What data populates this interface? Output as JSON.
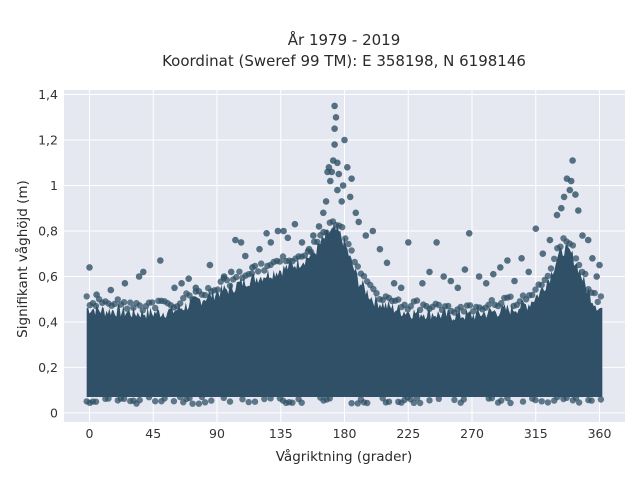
{
  "chart_data": {
    "type": "scatter",
    "title_lines": [
      "År 1979 - 2019",
      "Koordinat (Sweref 99 TM): E 358198, N 6198146"
    ],
    "xlabel": "Vågriktning (grader)",
    "ylabel": "Signifikant våghöjd (m)",
    "xlim": [
      -18,
      378
    ],
    "ylim": [
      -0.04,
      1.42
    ],
    "x_ticks": [
      0,
      45,
      90,
      135,
      180,
      225,
      270,
      315,
      360
    ],
    "x_tick_labels": [
      "0",
      "45",
      "90",
      "135",
      "180",
      "225",
      "270",
      "315",
      "360"
    ],
    "y_ticks": [
      0,
      0.2,
      0.4,
      0.6,
      0.8,
      1.0,
      1.2,
      1.4
    ],
    "y_tick_labels": [
      "0",
      "0,2",
      "0,4",
      "0,6",
      "0,8",
      "1",
      "1,2",
      "1,4"
    ],
    "grid": true,
    "colors": {
      "marker": "#2f5066",
      "plot_bg": "#e5e8f0",
      "grid": "#ffffff"
    },
    "points": [
      [
        0,
        0.64
      ],
      [
        5,
        0.52
      ],
      [
        15,
        0.54
      ],
      [
        25,
        0.57
      ],
      [
        35,
        0.6
      ],
      [
        38,
        0.62
      ],
      [
        50,
        0.67
      ],
      [
        60,
        0.55
      ],
      [
        65,
        0.57
      ],
      [
        70,
        0.59
      ],
      [
        75,
        0.55
      ],
      [
        85,
        0.65
      ],
      [
        95,
        0.6
      ],
      [
        100,
        0.62
      ],
      [
        103,
        0.76
      ],
      [
        107,
        0.75
      ],
      [
        110,
        0.69
      ],
      [
        115,
        0.64
      ],
      [
        120,
        0.72
      ],
      [
        125,
        0.79
      ],
      [
        128,
        0.75
      ],
      [
        133,
        0.8
      ],
      [
        137,
        0.8
      ],
      [
        140,
        0.77
      ],
      [
        145,
        0.83
      ],
      [
        150,
        0.75
      ],
      [
        155,
        0.72
      ],
      [
        158,
        0.78
      ],
      [
        162,
        0.82
      ],
      [
        165,
        0.88
      ],
      [
        167,
        0.93
      ],
      [
        168,
        1.06
      ],
      [
        169,
        1.08
      ],
      [
        170,
        1.02
      ],
      [
        171,
        1.06
      ],
      [
        172,
        1.11
      ],
      [
        173,
        1.18
      ],
      [
        173,
        1.25
      ],
      [
        173,
        1.35
      ],
      [
        174,
        1.3
      ],
      [
        175,
        1.1
      ],
      [
        175,
        0.98
      ],
      [
        176,
        1.05
      ],
      [
        178,
        0.93
      ],
      [
        179,
        1.0
      ],
      [
        180,
        1.2
      ],
      [
        182,
        1.08
      ],
      [
        184,
        0.95
      ],
      [
        185,
        1.03
      ],
      [
        188,
        0.88
      ],
      [
        190,
        0.84
      ],
      [
        195,
        0.78
      ],
      [
        200,
        0.8
      ],
      [
        205,
        0.72
      ],
      [
        210,
        0.66
      ],
      [
        215,
        0.57
      ],
      [
        220,
        0.55
      ],
      [
        225,
        0.75
      ],
      [
        235,
        0.57
      ],
      [
        240,
        0.62
      ],
      [
        245,
        0.75
      ],
      [
        250,
        0.6
      ],
      [
        255,
        0.58
      ],
      [
        260,
        0.55
      ],
      [
        265,
        0.63
      ],
      [
        268,
        0.79
      ],
      [
        275,
        0.6
      ],
      [
        280,
        0.57
      ],
      [
        285,
        0.61
      ],
      [
        290,
        0.64
      ],
      [
        295,
        0.67
      ],
      [
        300,
        0.58
      ],
      [
        305,
        0.68
      ],
      [
        310,
        0.62
      ],
      [
        315,
        0.81
      ],
      [
        320,
        0.7
      ],
      [
        325,
        0.76
      ],
      [
        330,
        0.87
      ],
      [
        333,
        0.9
      ],
      [
        335,
        0.95
      ],
      [
        337,
        1.03
      ],
      [
        339,
        0.98
      ],
      [
        340,
        1.02
      ],
      [
        341,
        1.11
      ],
      [
        343,
        0.96
      ],
      [
        345,
        0.89
      ],
      [
        348,
        0.78
      ],
      [
        352,
        0.76
      ],
      [
        355,
        0.68
      ],
      [
        358,
        0.6
      ],
      [
        360,
        0.65
      ]
    ],
    "density_envelope": {
      "x": [
        0,
        10,
        20,
        30,
        45,
        60,
        75,
        90,
        100,
        110,
        120,
        130,
        140,
        150,
        158,
        165,
        170,
        175,
        180,
        185,
        190,
        200,
        210,
        220,
        230,
        240,
        250,
        260,
        270,
        280,
        290,
        300,
        310,
        318,
        325,
        330,
        335,
        340,
        345,
        350,
        355,
        360
      ],
      "upper": [
        0.46,
        0.45,
        0.45,
        0.44,
        0.44,
        0.45,
        0.49,
        0.53,
        0.55,
        0.58,
        0.6,
        0.62,
        0.64,
        0.67,
        0.7,
        0.76,
        0.8,
        0.8,
        0.75,
        0.66,
        0.58,
        0.5,
        0.47,
        0.45,
        0.44,
        0.44,
        0.43,
        0.43,
        0.43,
        0.44,
        0.45,
        0.46,
        0.48,
        0.53,
        0.6,
        0.68,
        0.72,
        0.7,
        0.64,
        0.56,
        0.5,
        0.46
      ],
      "lower": 0.07
    }
  }
}
